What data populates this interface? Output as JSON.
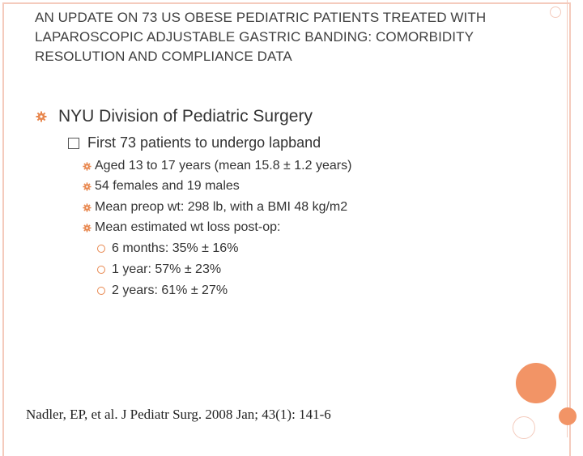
{
  "slide": {
    "title": "AN UPDATE ON 73 US OBESE PEDIATRIC PATIENTS TREATED WITH LAPAROSCOPIC ADJUSTABLE GASTRIC BANDING: COMORBIDITY RESOLUTION AND COMPLIANCE DATA",
    "bullet1": "NYU Division of Pediatric Surgery",
    "bullet2": "First 73 patients to undergo lapband",
    "bullets3": [
      "Aged 13 to 17 years (mean 15.8 ± 1.2 years)",
      "54 females and 19 males",
      "Mean preop wt: 298 lb, with a BMI 48 kg/m2",
      "Mean estimated wt loss post-op:"
    ],
    "bullets4": [
      "6 months: 35% ± 16%",
      "1 year: 57% ± 23%",
      "2 years: 61% ± 27%"
    ],
    "citation": "Nadler, EP, et al.  J Pediatr Surg.  2008 Jan; 43(1): 141-6"
  },
  "colors": {
    "accent": "#f29466",
    "border": "#f4cbbd",
    "bullet": "#e8874e"
  },
  "icons": {
    "level1": "gear-icon",
    "level2": "square-bullet-icon",
    "level3": "gear-icon",
    "level4": "ring-icon"
  }
}
